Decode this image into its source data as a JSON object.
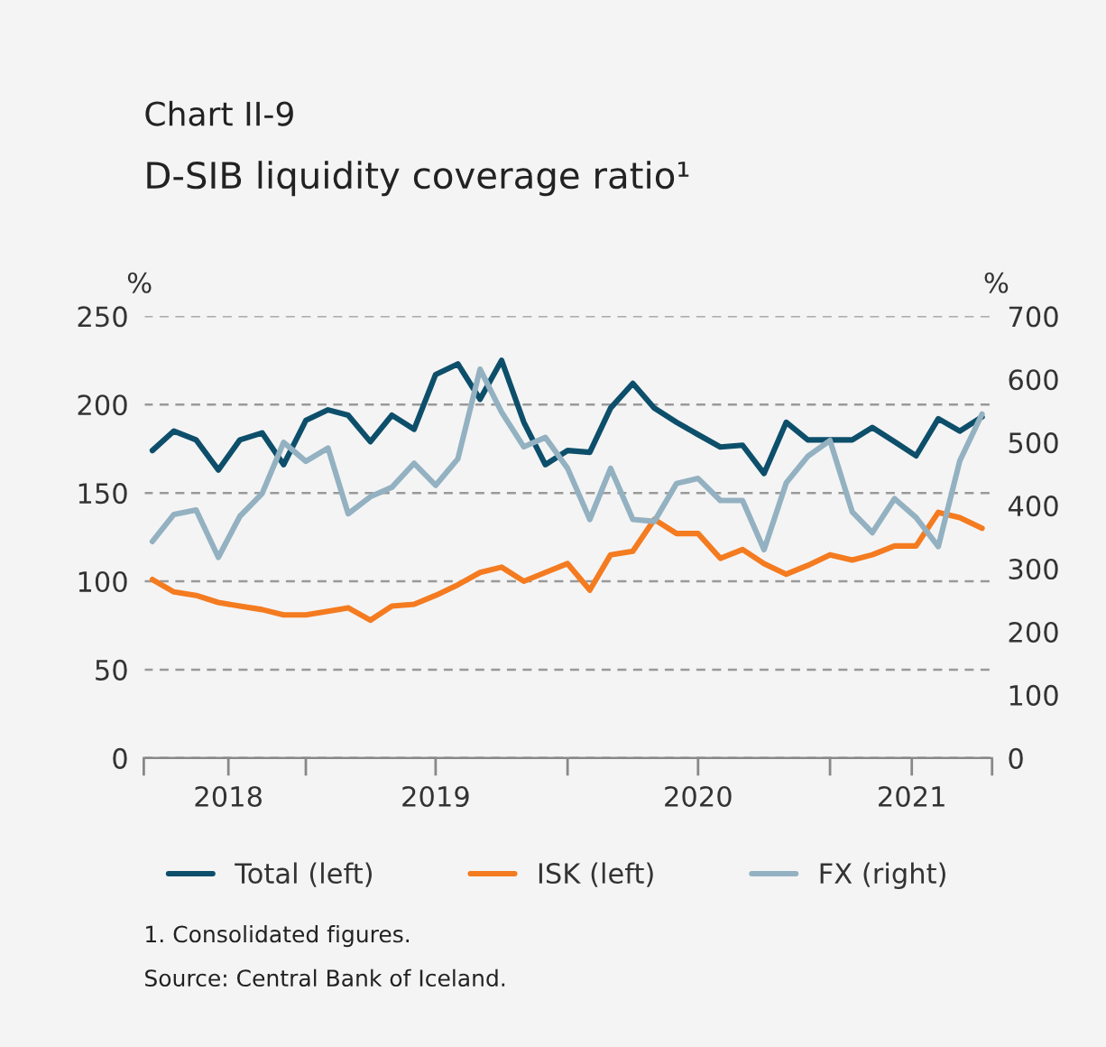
{
  "chart_data": {
    "type": "line",
    "title": "Chart II-9",
    "subtitle": "D-SIB liquidity coverage ratio¹",
    "ylabel": "%",
    "y2label": "%",
    "x": [
      "2018-06",
      "2018-07",
      "2018-08",
      "2018-09",
      "2018-10",
      "2018-11",
      "2018-12",
      "2019-01",
      "2019-02",
      "2019-03",
      "2019-04",
      "2019-05",
      "2019-06",
      "2019-07",
      "2019-08",
      "2019-09",
      "2019-10",
      "2019-11",
      "2019-12",
      "2020-01",
      "2020-02",
      "2020-03",
      "2020-04",
      "2020-05",
      "2020-06",
      "2020-07",
      "2020-08",
      "2020-09",
      "2020-10",
      "2020-11",
      "2020-12",
      "2021-01",
      "2021-02",
      "2021-03",
      "2021-04",
      "2021-05",
      "2021-06",
      "2021-07",
      "2021-08"
    ],
    "series": [
      {
        "name": "Total (left)",
        "color": "#0d4f6b",
        "values": [
          174,
          185,
          180,
          163,
          180,
          184,
          166,
          191,
          197,
          194,
          179,
          194,
          186,
          217,
          223,
          203,
          225,
          190,
          166,
          174,
          173,
          198,
          212,
          198,
          190,
          183,
          176,
          177,
          161,
          190,
          180,
          180,
          180,
          187,
          179,
          171,
          192,
          185,
          193
        ]
      },
      {
        "name": "ISK (left)",
        "color": "#f47b20",
        "values": [
          101,
          94,
          92,
          88,
          86,
          84,
          81,
          81,
          83,
          85,
          78,
          86,
          87,
          92,
          98,
          105,
          108,
          100,
          105,
          110,
          95,
          115,
          117,
          135,
          127,
          127,
          113,
          118,
          110,
          104,
          109,
          115,
          112,
          115,
          120,
          120,
          139,
          136,
          130
        ]
      },
      {
        "name": "FX (right)",
        "color": "#93b1c1",
        "axis": "y2",
        "values": [
          343,
          386,
          393,
          318,
          383,
          419,
          500,
          470,
          491,
          387,
          414,
          429,
          467,
          432,
          474,
          616,
          548,
          493,
          508,
          459,
          378,
          459,
          378,
          375,
          435,
          443,
          408,
          408,
          330,
          436,
          478,
          503,
          390,
          357,
          411,
          381,
          335,
          471,
          545
        ]
      }
    ],
    "xlim": [
      "2018-05-20",
      "2021-08-15"
    ],
    "xticks": [
      {
        "value": "2018-05-20",
        "label": null
      },
      {
        "value": "2018-09-15",
        "label": "2018"
      },
      {
        "value": "2019-01-01",
        "label": null
      },
      {
        "value": "2019-07-01",
        "label": "2019"
      },
      {
        "value": "2020-01-01",
        "label": null
      },
      {
        "value": "2020-07-01",
        "label": "2020"
      },
      {
        "value": "2021-01-01",
        "label": null
      },
      {
        "value": "2021-04-25",
        "label": "2021"
      },
      {
        "value": "2021-08-15",
        "label": null
      }
    ],
    "ylim": [
      0,
      250
    ],
    "yticks": [
      0,
      50,
      100,
      150,
      200,
      250
    ],
    "y2lim": [
      0,
      700
    ],
    "y2ticks": [
      0,
      100,
      200,
      300,
      400,
      500,
      600,
      700
    ],
    "grid": "y",
    "legend": "bottom",
    "annotations": [
      "1. Consolidated figures.",
      "Source: Central Bank of Iceland."
    ]
  }
}
